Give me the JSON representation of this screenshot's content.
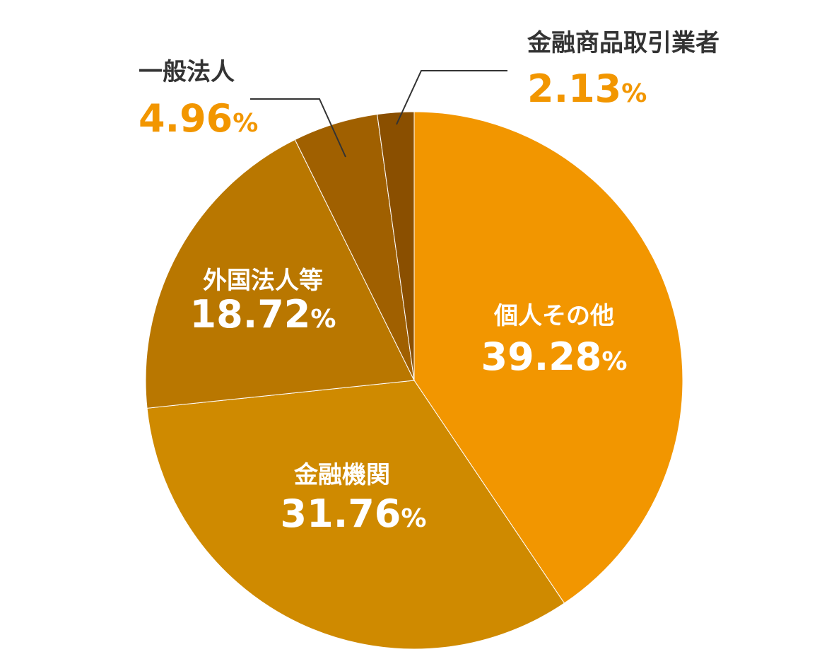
{
  "chart_data": {
    "type": "pie",
    "slices": [
      {
        "label": "個人その他",
        "value": 39.28,
        "value_text": "39.28",
        "unit": "%",
        "color": "#f29600",
        "label_position": "inside"
      },
      {
        "label": "金融機関",
        "value": 31.76,
        "value_text": "31.76",
        "unit": "%",
        "color": "#cf8a00",
        "label_position": "inside"
      },
      {
        "label": "外国法人等",
        "value": 18.72,
        "value_text": "18.72",
        "unit": "%",
        "color": "#b97700",
        "label_position": "inside"
      },
      {
        "label": "一般法人",
        "value": 4.96,
        "value_text": "4.96",
        "unit": "%",
        "color": "#a06000",
        "label_position": "outside"
      },
      {
        "label": "金融商品取引業者",
        "value": 2.13,
        "value_text": "2.13",
        "unit": "%",
        "color": "#8a4f00",
        "label_position": "outside"
      }
    ],
    "start_angle": "12 o'clock",
    "direction": "clockwise",
    "inside_label_color": "#ffffff",
    "outside_label_color": "#333333",
    "outside_value_color": "#f29600"
  }
}
